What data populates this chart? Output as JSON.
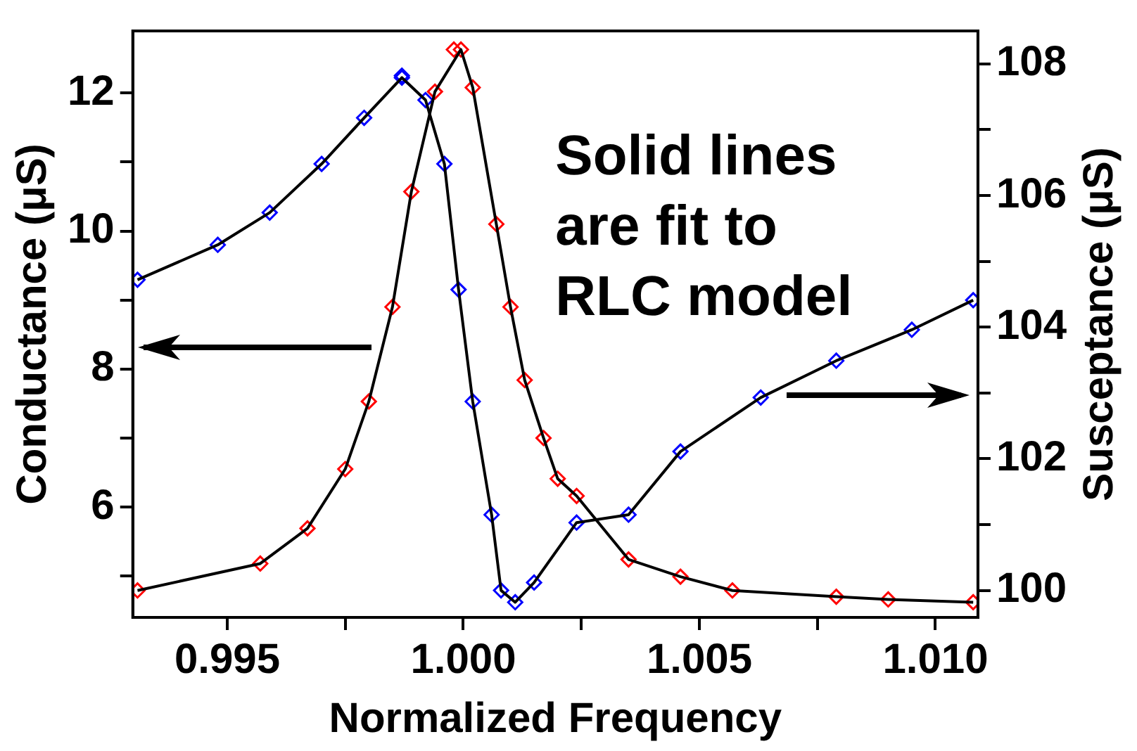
{
  "chart_data": {
    "type": "scatter",
    "xlabel": "Normalized Frequency",
    "ylabel": "Conductance (μS)",
    "y2label": "Susceptance (μS)",
    "xlim": [
      0.993,
      1.0109
    ],
    "ylim": [
      4.4,
      12.9
    ],
    "y2lim": [
      99.59,
      108.5
    ],
    "xticks": [
      0.995,
      {
        "value": 0.9975,
        "label": null
      },
      {
        "value": 1,
        "label": "1.000"
      },
      {
        "value": 1.0025,
        "label": null
      },
      1.005,
      {
        "value": 1.0075,
        "label": null
      },
      {
        "value": 1.01,
        "label": "1.010"
      }
    ],
    "yticks": [
      {
        "value": 5,
        "label": null
      },
      6,
      {
        "value": 7,
        "label": null
      },
      8,
      {
        "value": 9,
        "label": null
      },
      10,
      {
        "value": 11,
        "label": null
      },
      12
    ],
    "y2ticks": [
      100,
      {
        "value": 101,
        "label": null
      },
      102,
      {
        "value": 103,
        "label": null
      },
      104,
      {
        "value": 105,
        "label": null
      },
      106,
      {
        "value": 107,
        "label": null
      },
      108
    ],
    "grid": false,
    "marker": "diamond",
    "annotations": [
      "Solid lines are fit to RLC model"
    ],
    "series": [
      {
        "color": "#ff0000",
        "x": [
          0.9931,
          0.9957,
          0.9967,
          0.9975,
          0.998,
          0.9985,
          0.9989,
          0.9994,
          0.9998,
          0.99995,
          1.0002,
          1.0007,
          1.001,
          1.0013,
          1.0017,
          1.002,
          1.0024,
          1.0035,
          1.0046,
          1.0057,
          1.0079,
          1.009,
          1.0108
        ],
        "values": [
          4.79,
          5.18,
          5.69,
          6.55,
          7.53,
          8.9,
          10.57,
          12.02,
          12.63,
          12.63,
          12.08,
          10.1,
          8.9,
          7.84,
          7.0,
          6.41,
          6.16,
          5.24,
          4.99,
          4.79,
          4.7,
          4.66,
          4.62
        ]
      },
      {
        "color": "#0000ff",
        "axis": "y2",
        "x": [
          0.9931,
          0.9948,
          0.9959,
          0.997,
          0.9979,
          0.9987,
          0.9987,
          0.9992,
          0.9996,
          0.9999,
          1.0002,
          1.0006,
          1.0008,
          1.0011,
          1.0015,
          1.0024,
          1.0035,
          1.0046,
          1.0063,
          1.0079,
          1.0095,
          1.0108
        ],
        "values": [
          104.72,
          105.25,
          105.74,
          106.48,
          107.18,
          107.79,
          107.82,
          107.45,
          106.48,
          104.57,
          102.87,
          101.15,
          100.0,
          99.82,
          100.12,
          101.03,
          101.15,
          102.11,
          102.93,
          103.49,
          103.96,
          104.41
        ]
      },
      {
        "type": "line",
        "color": "#000000",
        "marker": "none",
        "x": [
          0.9931,
          0.9957,
          0.9967,
          0.9975,
          0.998,
          0.9985,
          0.9989,
          0.9994,
          0.99995,
          1.0002,
          1.0007,
          1.001,
          1.0013,
          1.0017,
          1.002,
          1.0024,
          1.0035,
          1.0046,
          1.0057,
          1.0079,
          1.009,
          1.0108
        ],
        "values": [
          4.79,
          5.18,
          5.69,
          6.55,
          7.53,
          8.9,
          10.57,
          12.02,
          12.63,
          12.08,
          10.1,
          8.9,
          7.84,
          7.0,
          6.41,
          6.16,
          5.24,
          4.99,
          4.79,
          4.7,
          4.66,
          4.62
        ]
      },
      {
        "type": "line",
        "color": "#000000",
        "marker": "none",
        "axis": "y2",
        "x": [
          0.9931,
          0.9948,
          0.9959,
          0.997,
          0.9979,
          0.9987,
          0.9992,
          0.9996,
          0.9999,
          1.0002,
          1.0006,
          1.0008,
          1.0011,
          1.0015,
          1.0024,
          1.0035,
          1.0046,
          1.0063,
          1.0079,
          1.0095,
          1.0108
        ],
        "values": [
          104.72,
          105.25,
          105.74,
          106.48,
          107.18,
          107.79,
          107.45,
          106.48,
          104.57,
          102.87,
          101.15,
          100.0,
          99.82,
          100.12,
          101.03,
          101.15,
          102.11,
          102.93,
          103.49,
          103.96,
          104.41
        ]
      }
    ]
  }
}
